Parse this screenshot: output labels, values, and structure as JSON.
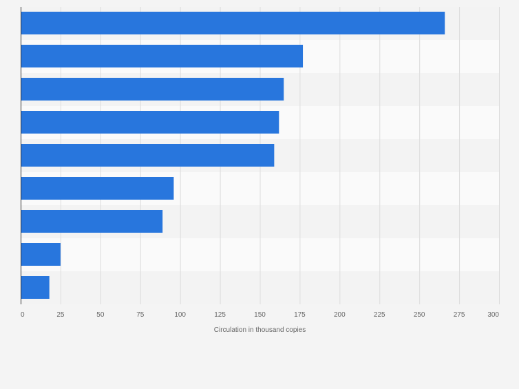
{
  "chart_data": {
    "type": "bar",
    "orientation": "horizontal",
    "title": "",
    "xlabel": "Circulation in thousand copies",
    "ylabel": "",
    "categories": [
      "",
      "",
      "",
      "",
      "",
      "",
      "",
      "",
      ""
    ],
    "values": [
      266,
      177,
      165,
      162,
      159,
      96,
      89,
      25,
      18
    ],
    "xlim": [
      0,
      300
    ],
    "xticks": [
      0,
      25,
      50,
      75,
      100,
      125,
      150,
      175,
      200,
      225,
      250,
      275,
      300
    ],
    "xtick_labels": [
      "0",
      "25",
      "50",
      "75",
      "100",
      "125",
      "150",
      "175",
      "200",
      "225",
      "250",
      "275",
      "300"
    ],
    "grid": true,
    "colors": {
      "bar": "#2876dd",
      "band_a": "#f3f3f3",
      "band_b": "#fafafa",
      "grid": "#dcdcdc",
      "axis": "#333333",
      "tick_text": "#666666",
      "page_bg": "#f4f4f4"
    }
  }
}
